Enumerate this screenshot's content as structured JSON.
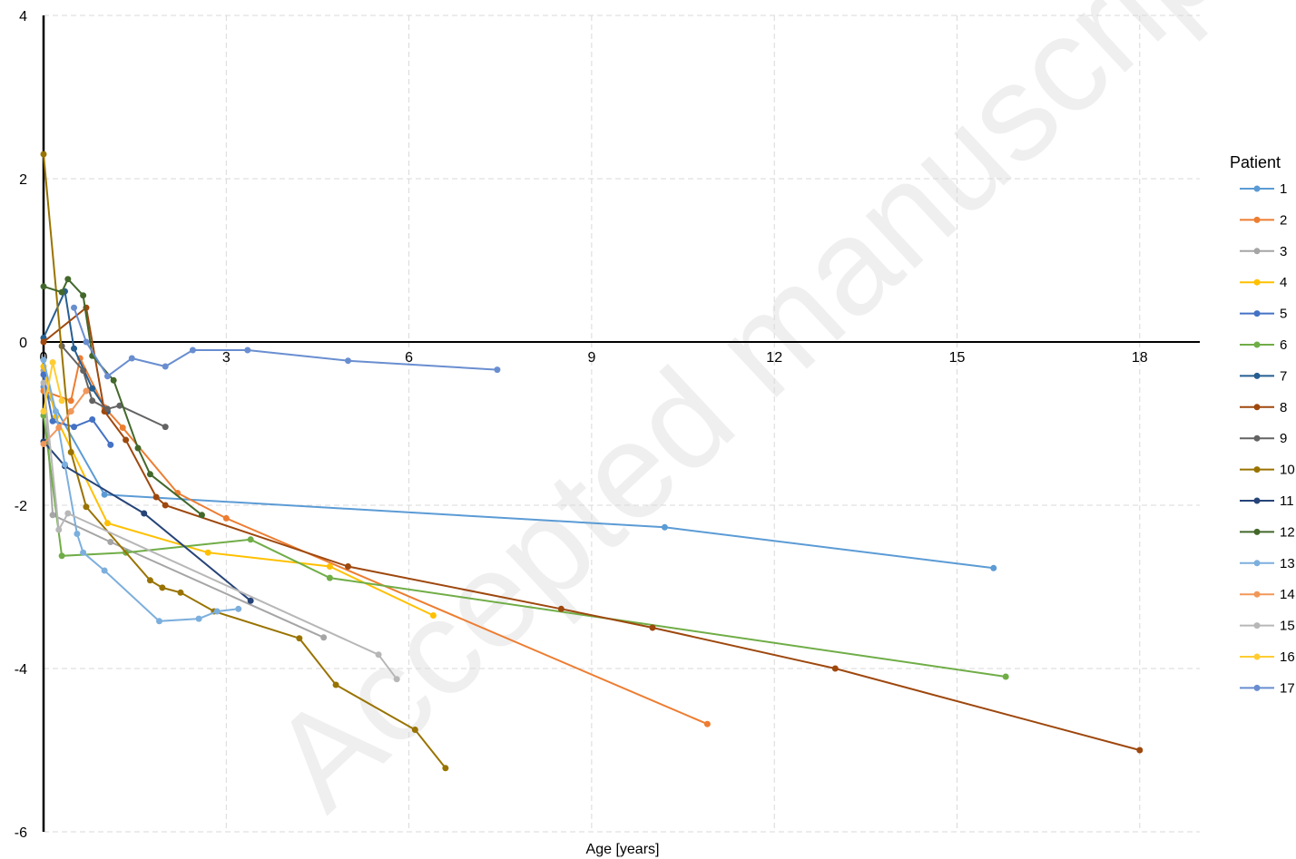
{
  "chart_data": {
    "type": "line",
    "title": "",
    "xlabel": "Age [years]",
    "ylabel": "",
    "xlim": [
      0,
      19
    ],
    "ylim": [
      -6,
      4
    ],
    "x_ticks": [
      0,
      3,
      6,
      9,
      12,
      15,
      18
    ],
    "y_ticks": [
      4,
      2,
      0,
      -2,
      -4,
      -6
    ],
    "grid": true,
    "legend_position": "right",
    "legend_title": "Patient",
    "watermark": "Accepted manuscript",
    "series": [
      {
        "name": "1",
        "color": "#5B9BD5",
        "points": [
          [
            0,
            -0.55
          ],
          [
            1.0,
            -1.87
          ],
          [
            10.2,
            -2.27
          ],
          [
            15.6,
            -2.77
          ]
        ]
      },
      {
        "name": "2",
        "color": "#ED7D31",
        "points": [
          [
            0,
            -0.6
          ],
          [
            0.45,
            -0.72
          ],
          [
            0.6,
            -0.2
          ],
          [
            1.0,
            -0.8
          ],
          [
            1.3,
            -1.05
          ],
          [
            2.2,
            -1.85
          ],
          [
            3.0,
            -2.16
          ],
          [
            10.9,
            -4.68
          ]
        ]
      },
      {
        "name": "3",
        "color": "#A5A5A5",
        "points": [
          [
            0,
            -0.35
          ],
          [
            0.15,
            -2.12
          ],
          [
            1.1,
            -2.45
          ],
          [
            4.6,
            -3.62
          ]
        ]
      },
      {
        "name": "4",
        "color": "#FFC000",
        "points": [
          [
            0,
            -0.3
          ],
          [
            0.2,
            -0.92
          ],
          [
            1.05,
            -2.22
          ],
          [
            2.7,
            -2.58
          ],
          [
            4.7,
            -2.75
          ],
          [
            6.4,
            -3.35
          ]
        ]
      },
      {
        "name": "5",
        "color": "#4472C4",
        "points": [
          [
            0,
            -0.4
          ],
          [
            0.15,
            -0.97
          ],
          [
            0.5,
            -1.04
          ],
          [
            0.8,
            -0.95
          ],
          [
            1.1,
            -1.26
          ]
        ]
      },
      {
        "name": "6",
        "color": "#70AD47",
        "points": [
          [
            0,
            -0.9
          ],
          [
            0.3,
            -2.62
          ],
          [
            1.35,
            -2.58
          ],
          [
            3.4,
            -2.42
          ],
          [
            4.7,
            -2.89
          ],
          [
            15.8,
            -4.1
          ]
        ]
      },
      {
        "name": "7",
        "color": "#255E91",
        "points": [
          [
            0,
            0.05
          ],
          [
            0.35,
            0.62
          ],
          [
            0.5,
            -0.08
          ],
          [
            0.8,
            -0.57
          ],
          [
            1.05,
            -0.85
          ]
        ]
      },
      {
        "name": "8",
        "color": "#9E480E",
        "points": [
          [
            0,
            0.0
          ],
          [
            0.7,
            0.42
          ],
          [
            1.0,
            -0.85
          ],
          [
            1.35,
            -1.2
          ],
          [
            1.85,
            -1.9
          ],
          [
            2.0,
            -2.0
          ],
          [
            5.0,
            -2.75
          ],
          [
            8.5,
            -3.27
          ],
          [
            10.0,
            -3.5
          ],
          [
            13.0,
            -4.0
          ],
          [
            18.0,
            -5.0
          ]
        ]
      },
      {
        "name": "9",
        "color": "#636363",
        "points": [
          [
            0.3,
            -0.05
          ],
          [
            0.65,
            -0.35
          ],
          [
            0.8,
            -0.72
          ],
          [
            1.05,
            -0.82
          ],
          [
            1.25,
            -0.78
          ],
          [
            2.0,
            -1.04
          ]
        ]
      },
      {
        "name": "10",
        "color": "#997300",
        "points": [
          [
            0,
            2.3
          ],
          [
            0.45,
            -1.35
          ],
          [
            0.7,
            -2.02
          ],
          [
            1.75,
            -2.92
          ],
          [
            1.95,
            -3.01
          ],
          [
            2.25,
            -3.07
          ],
          [
            2.8,
            -3.3
          ],
          [
            4.2,
            -3.63
          ],
          [
            4.8,
            -4.2
          ],
          [
            6.1,
            -4.75
          ],
          [
            6.6,
            -5.22
          ]
        ]
      },
      {
        "name": "11",
        "color": "#264478",
        "points": [
          [
            0,
            -1.22
          ],
          [
            0.35,
            -1.52
          ],
          [
            1.65,
            -2.1
          ],
          [
            3.4,
            -3.17
          ]
        ]
      },
      {
        "name": "12",
        "color": "#43682B",
        "points": [
          [
            0,
            0.68
          ],
          [
            0.3,
            0.61
          ],
          [
            0.4,
            0.77
          ],
          [
            0.65,
            0.57
          ],
          [
            0.8,
            -0.17
          ],
          [
            1.15,
            -0.47
          ],
          [
            1.55,
            -1.3
          ],
          [
            1.75,
            -1.62
          ],
          [
            2.6,
            -2.12
          ]
        ]
      },
      {
        "name": "13",
        "color": "#7CAFDD",
        "points": [
          [
            0,
            -0.22
          ],
          [
            0.2,
            -0.85
          ],
          [
            0.35,
            -1.5
          ],
          [
            0.55,
            -2.35
          ],
          [
            0.65,
            -2.58
          ],
          [
            1.0,
            -2.8
          ],
          [
            1.9,
            -3.42
          ],
          [
            2.55,
            -3.39
          ],
          [
            2.85,
            -3.3
          ],
          [
            3.2,
            -3.27
          ]
        ]
      },
      {
        "name": "14",
        "color": "#F1975A",
        "points": [
          [
            0,
            -1.25
          ],
          [
            0.25,
            -1.05
          ],
          [
            0.45,
            -0.85
          ],
          [
            0.7,
            -0.6
          ]
        ]
      },
      {
        "name": "15",
        "color": "#B7B7B7",
        "points": [
          [
            0,
            -0.5
          ],
          [
            0.25,
            -2.3
          ],
          [
            0.4,
            -2.1
          ],
          [
            5.5,
            -3.83
          ],
          [
            5.8,
            -4.13
          ]
        ]
      },
      {
        "name": "16",
        "color": "#FFCD33",
        "points": [
          [
            0,
            -0.85
          ],
          [
            0.15,
            -0.25
          ],
          [
            0.3,
            -0.72
          ]
        ]
      },
      {
        "name": "17",
        "color": "#698ED0",
        "points": [
          [
            0.5,
            0.42
          ],
          [
            0.7,
            0.0
          ],
          [
            1.05,
            -0.42
          ],
          [
            1.45,
            -0.2
          ],
          [
            2.0,
            -0.3
          ],
          [
            2.45,
            -0.1
          ],
          [
            3.35,
            -0.1
          ],
          [
            5.0,
            -0.23
          ],
          [
            7.45,
            -0.34
          ]
        ]
      }
    ]
  }
}
